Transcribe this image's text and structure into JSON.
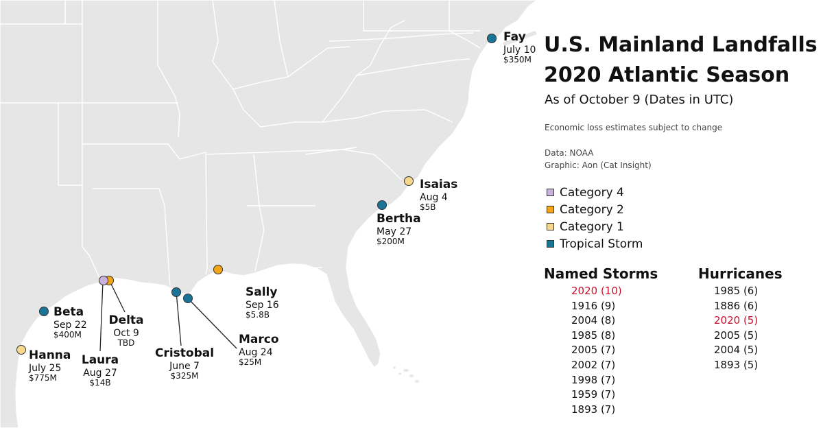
{
  "title": {
    "line1": "U.S. Mainland Landfalls",
    "line2": "2020 Atlantic Season",
    "subtitle": "As of October 9 (Dates in UTC)",
    "note": "Economic loss estimates subject to change",
    "source_data": "Data: NOAA",
    "source_graphic": "Graphic: Aon (Cat Insight)"
  },
  "colors": {
    "land": "#e6e6e6",
    "category4": "#c9b1d9",
    "category2": "#f2a516",
    "category1": "#f7d88f",
    "tropical_storm": "#1a7496",
    "highlight": "#c8102e"
  },
  "legend": [
    {
      "label": "Category 4",
      "color": "#c9b1d9"
    },
    {
      "label": "Category 2",
      "color": "#f2a516"
    },
    {
      "label": "Category 1",
      "color": "#f7d88f"
    },
    {
      "label": "Tropical Storm",
      "color": "#1a7496"
    }
  ],
  "storms": [
    {
      "name": "Fay",
      "date": "July 10",
      "loss": "$350M",
      "category": "Tropical Storm"
    },
    {
      "name": "Isaias",
      "date": "Aug 4",
      "loss": "$5B",
      "category": "Category 1"
    },
    {
      "name": "Bertha",
      "date": "May 27",
      "loss": "$200M",
      "category": "Tropical Storm"
    },
    {
      "name": "Sally",
      "date": "Sep 16",
      "loss": "$5.8B",
      "category": "Category 2"
    },
    {
      "name": "Marco",
      "date": "Aug 24",
      "loss": "$25M",
      "category": "Tropical Storm"
    },
    {
      "name": "Cristobal",
      "date": "June 7",
      "loss": "$325M",
      "category": "Tropical Storm"
    },
    {
      "name": "Delta",
      "date": "Oct 9",
      "loss": "TBD",
      "category": "Category 2"
    },
    {
      "name": "Laura",
      "date": "Aug 27",
      "loss": "$14B",
      "category": "Category 4"
    },
    {
      "name": "Beta",
      "date": "Sep 22",
      "loss": "$400M",
      "category": "Tropical Storm"
    },
    {
      "name": "Hanna",
      "date": "July 25",
      "loss": "$775M",
      "category": "Category 1"
    }
  ],
  "named_storms": {
    "heading": "Named Storms",
    "items": [
      {
        "text": "2020 (10)",
        "highlight": true
      },
      {
        "text": "1916 (9)",
        "highlight": false
      },
      {
        "text": "2004 (8)",
        "highlight": false
      },
      {
        "text": "1985 (8)",
        "highlight": false
      },
      {
        "text": "2005 (7)",
        "highlight": false
      },
      {
        "text": "2002 (7)",
        "highlight": false
      },
      {
        "text": "1998 (7)",
        "highlight": false
      },
      {
        "text": "1959 (7)",
        "highlight": false
      },
      {
        "text": "1893 (7)",
        "highlight": false
      }
    ]
  },
  "hurricanes": {
    "heading": "Hurricanes",
    "items": [
      {
        "text": "1985 (6)",
        "highlight": false
      },
      {
        "text": "1886 (6)",
        "highlight": false
      },
      {
        "text": "2020 (5)",
        "highlight": true
      },
      {
        "text": "2005 (5)",
        "highlight": false
      },
      {
        "text": "2004 (5)",
        "highlight": false
      },
      {
        "text": "1893 (5)",
        "highlight": false
      }
    ]
  }
}
